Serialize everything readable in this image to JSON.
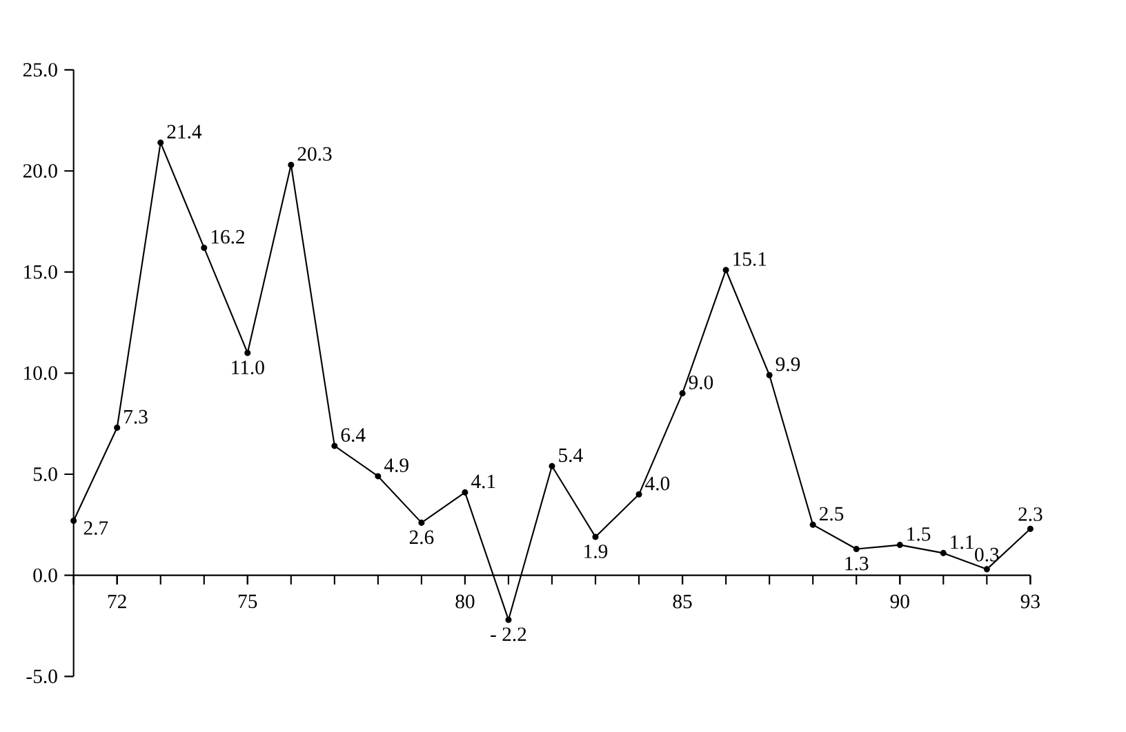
{
  "chart_data": {
    "type": "line",
    "x": [
      71,
      72,
      73,
      74,
      75,
      76,
      77,
      78,
      79,
      80,
      81,
      82,
      83,
      84,
      85,
      86,
      87,
      88,
      89,
      90,
      91,
      92,
      93
    ],
    "values": [
      2.7,
      7.3,
      21.4,
      16.2,
      11.0,
      20.3,
      6.4,
      4.9,
      2.6,
      4.1,
      -2.2,
      5.4,
      1.9,
      4.0,
      9.0,
      15.1,
      9.9,
      2.5,
      1.3,
      1.5,
      1.1,
      0.3,
      2.3
    ],
    "value_labels": [
      "2.7",
      "7.3",
      "21.4",
      "16.2",
      "11.0",
      "20.3",
      "6.4",
      "4.9",
      "2.6",
      "4.1",
      "- 2.2",
      "5.4",
      "1.9",
      "4.0",
      "9.0",
      "15.1",
      "9.9",
      "2.5",
      "1.3",
      "1.5",
      "1.1",
      "0.3",
      "2.3"
    ],
    "color": "#000000",
    "marker": "circle",
    "line_style": "solid",
    "grid": false,
    "xlim": [
      71,
      93
    ],
    "xticks": [
      72,
      75,
      80,
      85,
      90,
      93
    ],
    "ylim": [
      -5,
      25
    ],
    "yticks": [
      {
        "value": -5,
        "label": "-5.0"
      },
      {
        "value": 0,
        "label": "0.0"
      },
      {
        "value": 5,
        "label": "5.0"
      },
      {
        "value": 10,
        "label": "10.0"
      },
      {
        "value": 15,
        "label": "15.0"
      },
      {
        "value": 20,
        "label": "20.0"
      },
      {
        "value": 25,
        "label": "25.0"
      }
    ]
  }
}
